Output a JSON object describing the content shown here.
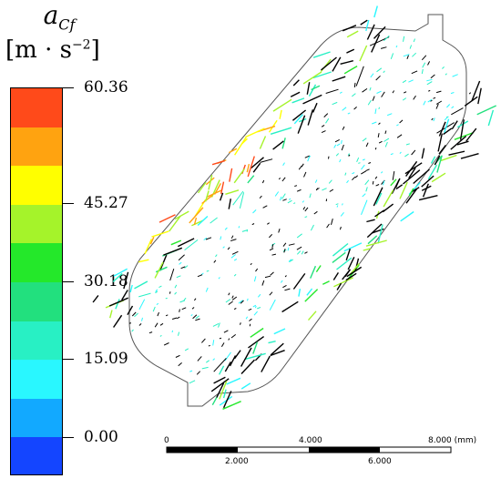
{
  "legend": {
    "symbol": "a",
    "symbol_sub": "Cf",
    "unit_base": "[m · s",
    "unit_exp": "−2",
    "unit_close": "]",
    "ticks": [
      "60.36",
      "45.27",
      "30.18",
      "15.09",
      "0.00"
    ],
    "colors": [
      "#ff4a1a",
      "#ffa310",
      "#ffff00",
      "#a5f32a",
      "#24e82a",
      "#22e07e",
      "#28f0c4",
      "#29f7ff",
      "#12a9ff",
      "#1445ff"
    ]
  },
  "scalebar": {
    "top_labels": [
      "0",
      "4.000",
      "8.000 (mm)"
    ],
    "bottom_labels": [
      "2.000",
      "6.000"
    ]
  }
}
